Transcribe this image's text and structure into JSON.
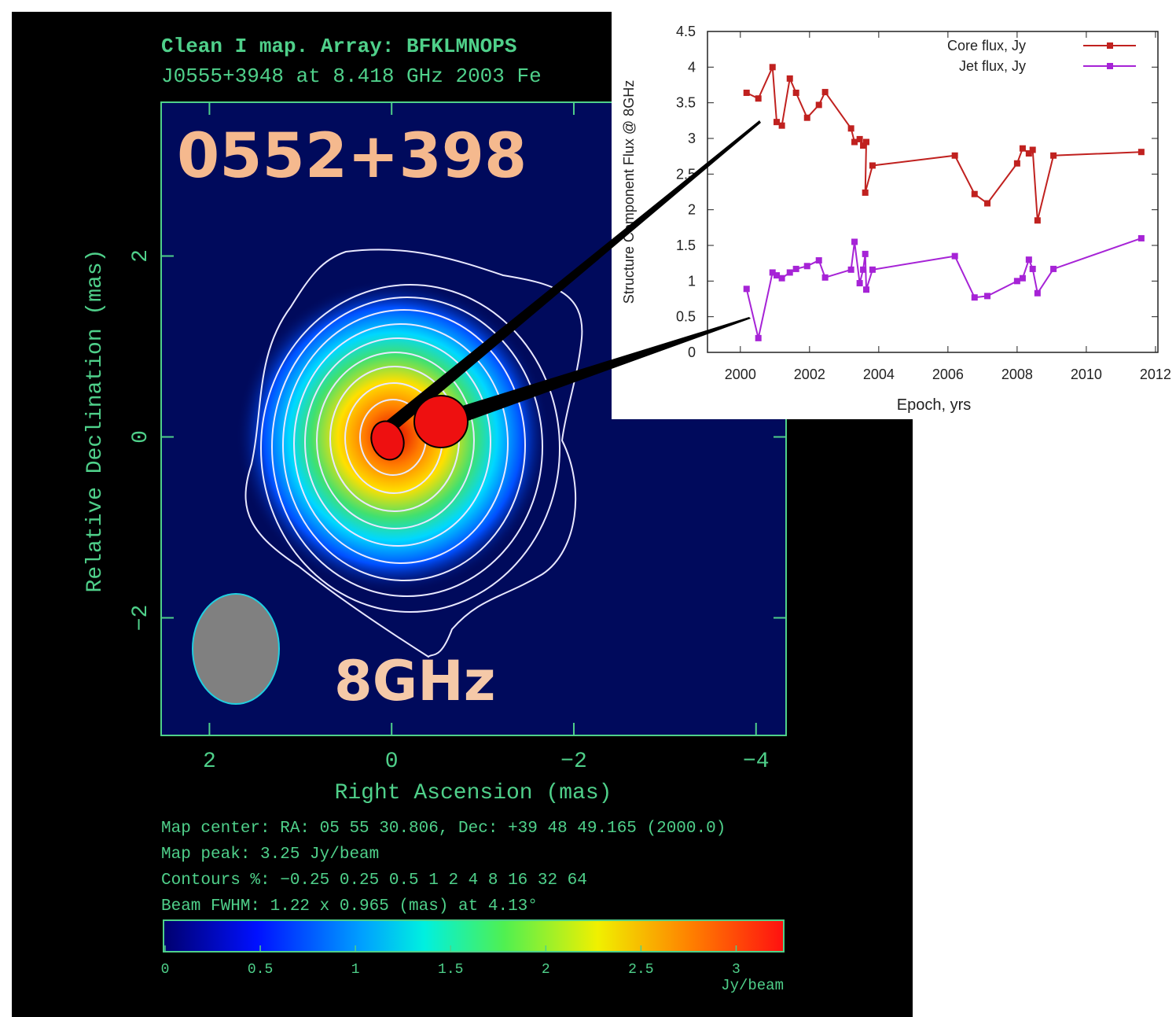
{
  "chart_data": [
    {
      "type": "contour",
      "title": "Clean I map.  Array:  BFKLMNOPS",
      "subtitle": "J0555+3948 at 8.418 GHz 2003 Fe",
      "annotations": [
        "0552+398",
        "8GHz"
      ],
      "xlabel": "Right Ascension  (mas)",
      "ylabel": "Relative Declination  (mas)",
      "xlim": [
        2.53,
        -4.33
      ],
      "ylim": [
        -3.3,
        3.7
      ],
      "xticks": [
        2,
        0,
        {
          "value": -2,
          "label": "−2"
        },
        {
          "value": -4,
          "label": "−4"
        }
      ],
      "yticks": [
        {
          "value": -2,
          "label": "−2"
        },
        0,
        2
      ],
      "footer": [
        "Map center:  RA: 05 55 30.806,  Dec: +39 48 49.165 (2000.0)",
        "Map peak: 3.25 Jy/beam",
        "Contours %: −0.25 0.25 0.5 1 2 4 8 16 32 64",
        "Beam FWHM: 1.22 x 0.965 (mas) at 4.13°"
      ],
      "colorbar": {
        "lim": [
          0,
          3.25
        ],
        "ticks": [
          0,
          0.5,
          1,
          1.5,
          2,
          2.5,
          3
        ],
        "label": "Jy/beam"
      }
    },
    {
      "type": "line",
      "xlabel": "Epoch, yrs",
      "ylabel": "Structure Component Flux @ 8GHz",
      "xlim": [
        1999.05,
        2012.07
      ],
      "ylim": [
        0,
        4.5
      ],
      "xticks": [
        2000,
        2002,
        2004,
        2006,
        2008,
        2010,
        2012
      ],
      "yticks": [
        0,
        0.5,
        1,
        1.5,
        2,
        2.5,
        3,
        3.5,
        4,
        4.5
      ],
      "legend": "upper right",
      "series": [
        {
          "name": "Core flux, Jy",
          "color": "#c0211f",
          "x": [
            2000.18,
            2000.52,
            2000.93,
            2001.05,
            2001.2,
            2001.43,
            2001.61,
            2001.93,
            2002.27,
            2002.45,
            2003.2,
            2003.3,
            2003.45,
            2003.55,
            2003.64,
            2003.61,
            2003.82,
            2006.2,
            2006.77,
            2007.14,
            2008.0,
            2008.16,
            2008.34,
            2008.45,
            2008.59,
            2009.05,
            2011.59
          ],
          "values": [
            3.64,
            3.56,
            4.0,
            3.23,
            3.18,
            3.84,
            3.64,
            3.29,
            3.47,
            3.65,
            3.14,
            2.95,
            2.99,
            2.9,
            2.95,
            2.24,
            2.62,
            2.76,
            2.22,
            2.09,
            2.65,
            2.86,
            2.79,
            2.84,
            1.85,
            2.76,
            2.81
          ]
        },
        {
          "name": "Jet flux, Jy",
          "color": "#a623d6",
          "x": [
            2000.18,
            2000.52,
            2000.93,
            2001.05,
            2001.2,
            2001.43,
            2001.61,
            2001.93,
            2002.27,
            2002.45,
            2003.2,
            2003.3,
            2003.45,
            2003.55,
            2003.61,
            2003.64,
            2003.82,
            2006.2,
            2006.77,
            2007.14,
            2008.0,
            2008.16,
            2008.34,
            2008.45,
            2008.59,
            2009.05,
            2011.59
          ],
          "values": [
            0.89,
            0.2,
            1.12,
            1.08,
            1.04,
            1.12,
            1.17,
            1.21,
            1.29,
            1.05,
            1.16,
            1.55,
            0.97,
            1.16,
            1.38,
            0.88,
            1.16,
            1.35,
            0.77,
            0.79,
            1.0,
            1.04,
            1.3,
            1.17,
            0.83,
            1.17,
            1.6
          ]
        }
      ]
    }
  ]
}
